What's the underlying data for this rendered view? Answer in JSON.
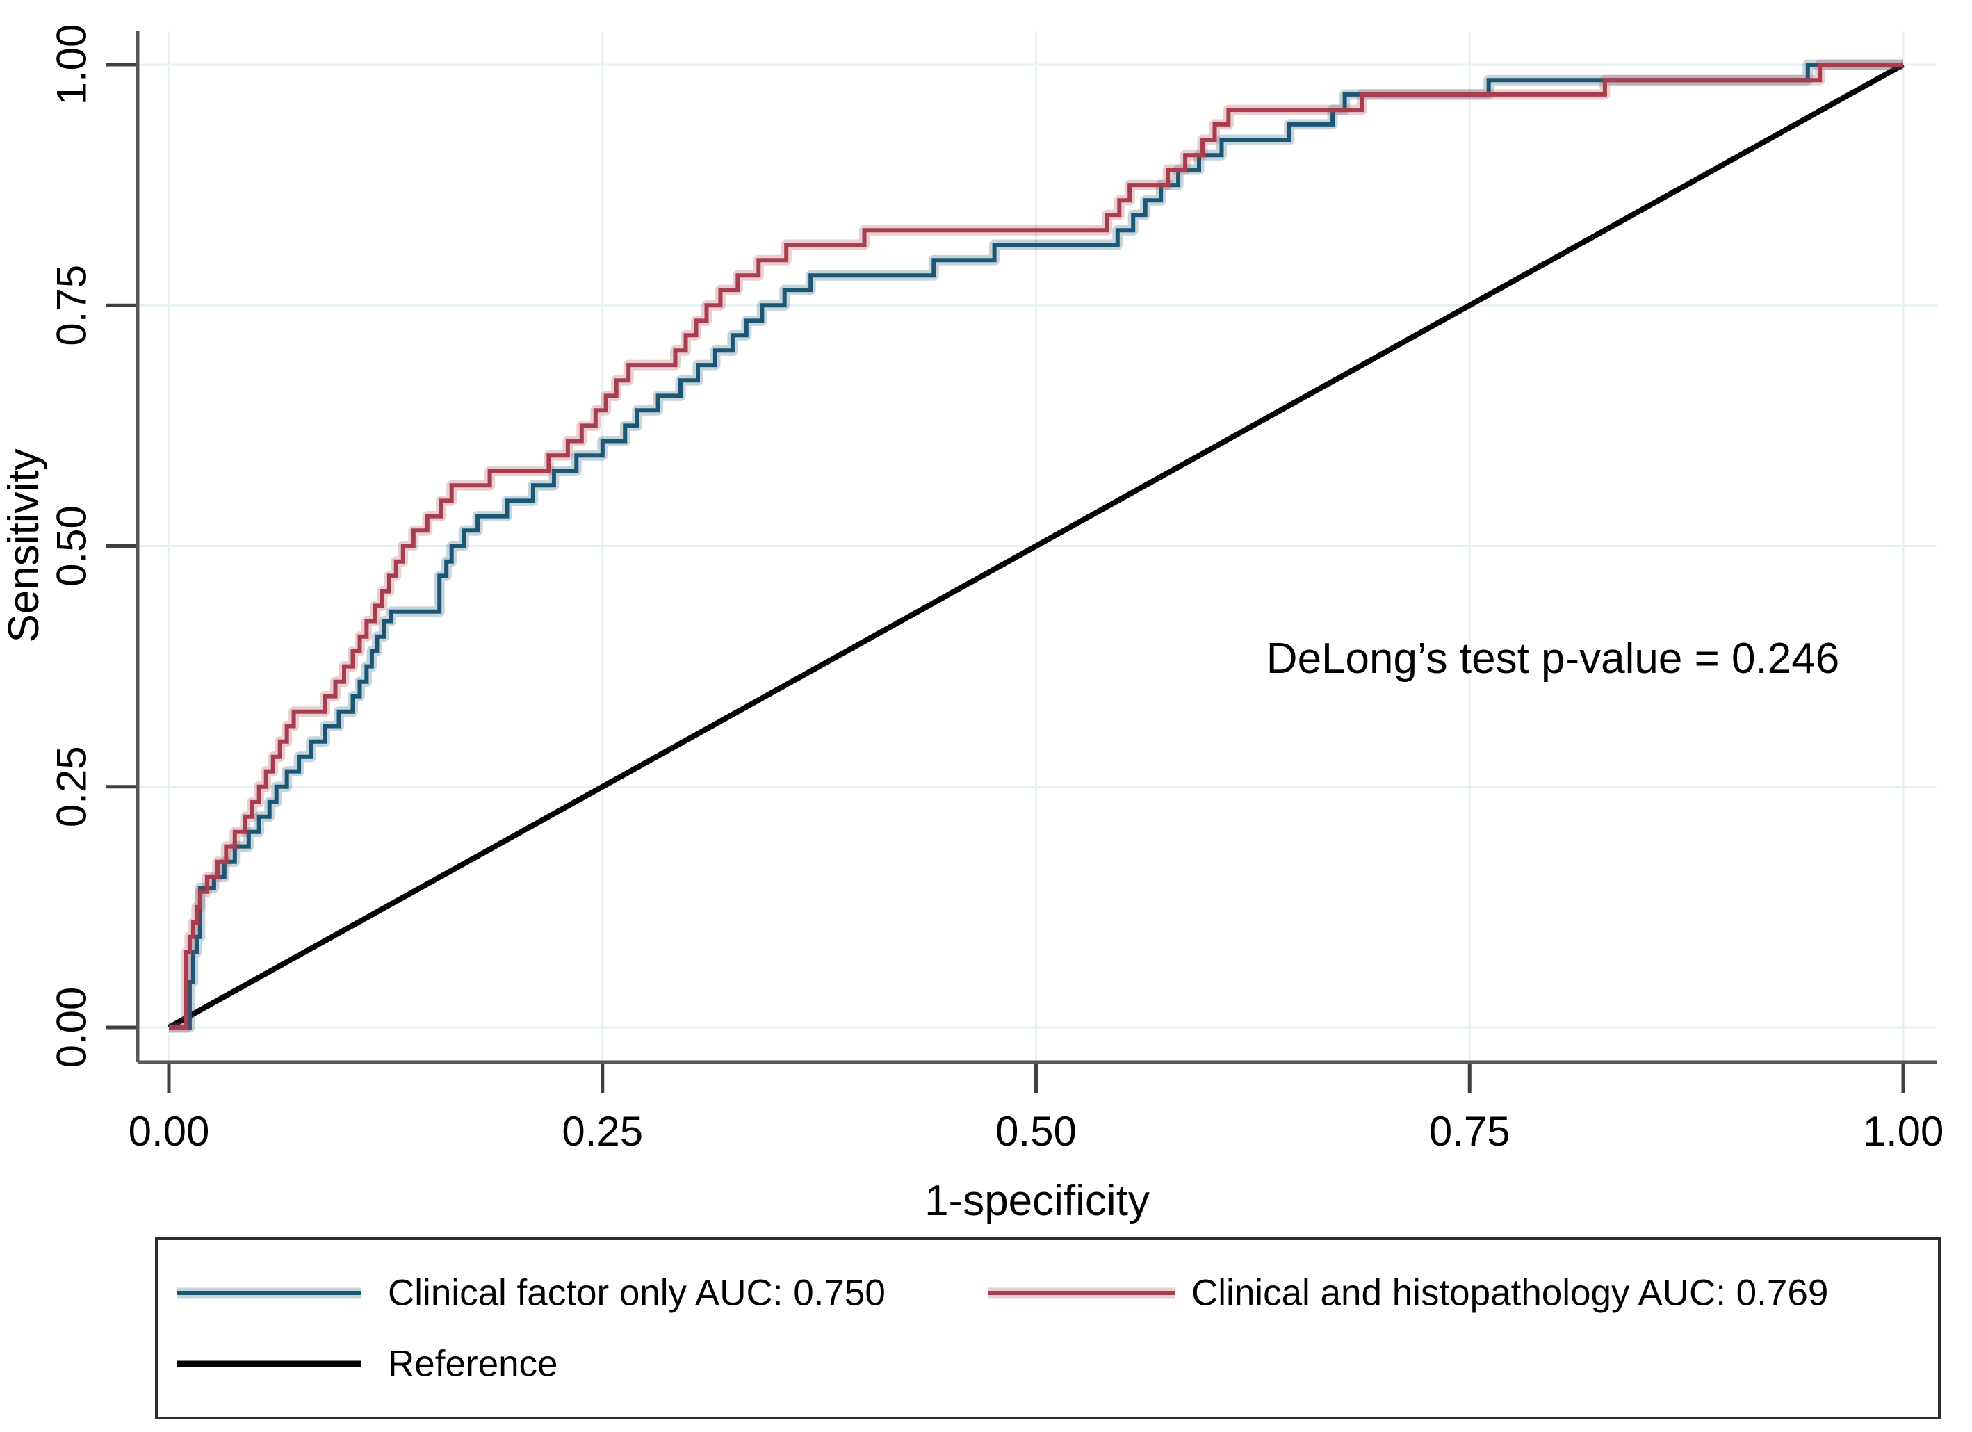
{
  "figure": {
    "type_note": "ROC curve comparison figure",
    "annotation": "DeLong’s test p-value = 0.246",
    "x_axis": {
      "title": "1-specificity",
      "tick_labels": [
        "0.00",
        "0.25",
        "0.50",
        "0.75",
        "1.00"
      ],
      "tick_values": [
        0,
        0.25,
        0.5,
        0.75,
        1
      ]
    },
    "y_axis": {
      "title": "Sensitivity",
      "tick_labels": [
        "0.00",
        "0.25",
        "0.50",
        "0.75",
        "1.00"
      ],
      "tick_values": [
        0,
        0.25,
        0.5,
        0.75,
        1
      ]
    },
    "legend": {
      "items": [
        {
          "label": "Clinical factor only AUC: 0.750",
          "color": "#1b5675"
        },
        {
          "label": "Clinical and histopathology AUC: 0.769",
          "color": "#a83e4d"
        },
        {
          "label": "Reference",
          "color": "#000000"
        }
      ]
    },
    "colors": {
      "curve_clinical": "#1b5675",
      "curve_clinical_histopathology": "#a83e4d",
      "reference": "#000000",
      "gridline": "#e7f0f2",
      "axis_line": "#575757",
      "tick": "#3f3f3f",
      "legend_border": "#2e2e2e",
      "text": "#000000"
    }
  },
  "chart_data": {
    "type": "line",
    "subtype": "roc-step-curves",
    "title": "",
    "xlabel": "1-specificity",
    "ylabel": "Sensitivity",
    "xlim": [
      0,
      1
    ],
    "ylim": [
      0,
      1
    ],
    "grid": true,
    "legend_position": "bottom",
    "annotation": "DeLong’s test p-value = 0.246",
    "delong_p_value": 0.246,
    "x_tick_labels": [
      "0.00",
      "0.25",
      "0.50",
      "0.75",
      "1.00"
    ],
    "y_tick_labels": [
      "0.00",
      "0.25",
      "0.50",
      "0.75",
      "1.00"
    ],
    "x_tick_values": [
      0,
      0.25,
      0.5,
      0.75,
      1
    ],
    "y_tick_values": [
      0,
      0.25,
      0.5,
      0.75,
      1
    ],
    "series": [
      {
        "name": "Clinical factor only AUC: 0.750",
        "auc": 0.75,
        "color": "#1b5675",
        "style": "step",
        "points": [
          [
            0.0,
            0.0
          ],
          [
            0.012,
            0.047
          ],
          [
            0.014,
            0.078
          ],
          [
            0.016,
            0.094
          ],
          [
            0.018,
            0.145
          ],
          [
            0.026,
            0.156
          ],
          [
            0.032,
            0.172
          ],
          [
            0.038,
            0.188
          ],
          [
            0.046,
            0.203
          ],
          [
            0.052,
            0.219
          ],
          [
            0.058,
            0.234
          ],
          [
            0.062,
            0.25
          ],
          [
            0.068,
            0.266
          ],
          [
            0.075,
            0.281
          ],
          [
            0.082,
            0.297
          ],
          [
            0.09,
            0.313
          ],
          [
            0.098,
            0.328
          ],
          [
            0.106,
            0.344
          ],
          [
            0.11,
            0.359
          ],
          [
            0.114,
            0.375
          ],
          [
            0.117,
            0.391
          ],
          [
            0.12,
            0.406
          ],
          [
            0.124,
            0.422
          ],
          [
            0.128,
            0.432
          ],
          [
            0.156,
            0.469
          ],
          [
            0.16,
            0.484
          ],
          [
            0.163,
            0.5
          ],
          [
            0.17,
            0.516
          ],
          [
            0.178,
            0.531
          ],
          [
            0.195,
            0.547
          ],
          [
            0.21,
            0.563
          ],
          [
            0.222,
            0.578
          ],
          [
            0.235,
            0.594
          ],
          [
            0.25,
            0.609
          ],
          [
            0.263,
            0.625
          ],
          [
            0.27,
            0.641
          ],
          [
            0.282,
            0.656
          ],
          [
            0.295,
            0.672
          ],
          [
            0.305,
            0.688
          ],
          [
            0.315,
            0.703
          ],
          [
            0.325,
            0.719
          ],
          [
            0.333,
            0.734
          ],
          [
            0.342,
            0.75
          ],
          [
            0.355,
            0.766
          ],
          [
            0.37,
            0.781
          ],
          [
            0.441,
            0.797
          ],
          [
            0.476,
            0.813
          ],
          [
            0.547,
            0.828
          ],
          [
            0.556,
            0.844
          ],
          [
            0.563,
            0.859
          ],
          [
            0.572,
            0.875
          ],
          [
            0.582,
            0.891
          ],
          [
            0.594,
            0.906
          ],
          [
            0.607,
            0.922
          ],
          [
            0.646,
            0.938
          ],
          [
            0.671,
            0.953
          ],
          [
            0.678,
            0.969
          ],
          [
            0.761,
            0.984
          ],
          [
            0.945,
            1.0
          ],
          [
            1.0,
            1.0
          ]
        ]
      },
      {
        "name": "Clinical and histopathology AUC: 0.769",
        "auc": 0.769,
        "color": "#a83e4d",
        "style": "step",
        "points": [
          [
            0.0,
            0.0
          ],
          [
            0.01,
            0.078
          ],
          [
            0.012,
            0.094
          ],
          [
            0.014,
            0.109
          ],
          [
            0.016,
            0.125
          ],
          [
            0.018,
            0.141
          ],
          [
            0.022,
            0.156
          ],
          [
            0.028,
            0.172
          ],
          [
            0.033,
            0.188
          ],
          [
            0.038,
            0.203
          ],
          [
            0.044,
            0.219
          ],
          [
            0.048,
            0.234
          ],
          [
            0.052,
            0.25
          ],
          [
            0.056,
            0.266
          ],
          [
            0.06,
            0.281
          ],
          [
            0.064,
            0.297
          ],
          [
            0.068,
            0.313
          ],
          [
            0.072,
            0.328
          ],
          [
            0.09,
            0.344
          ],
          [
            0.096,
            0.359
          ],
          [
            0.101,
            0.375
          ],
          [
            0.106,
            0.391
          ],
          [
            0.11,
            0.406
          ],
          [
            0.114,
            0.422
          ],
          [
            0.119,
            0.438
          ],
          [
            0.123,
            0.453
          ],
          [
            0.127,
            0.469
          ],
          [
            0.131,
            0.484
          ],
          [
            0.135,
            0.5
          ],
          [
            0.141,
            0.516
          ],
          [
            0.149,
            0.531
          ],
          [
            0.157,
            0.547
          ],
          [
            0.163,
            0.563
          ],
          [
            0.185,
            0.578
          ],
          [
            0.219,
            0.594
          ],
          [
            0.23,
            0.609
          ],
          [
            0.238,
            0.625
          ],
          [
            0.246,
            0.641
          ],
          [
            0.252,
            0.656
          ],
          [
            0.258,
            0.672
          ],
          [
            0.265,
            0.688
          ],
          [
            0.292,
            0.703
          ],
          [
            0.298,
            0.719
          ],
          [
            0.304,
            0.734
          ],
          [
            0.31,
            0.75
          ],
          [
            0.318,
            0.766
          ],
          [
            0.328,
            0.781
          ],
          [
            0.34,
            0.797
          ],
          [
            0.356,
            0.813
          ],
          [
            0.401,
            0.828
          ],
          [
            0.541,
            0.844
          ],
          [
            0.548,
            0.859
          ],
          [
            0.554,
            0.875
          ],
          [
            0.576,
            0.891
          ],
          [
            0.586,
            0.906
          ],
          [
            0.596,
            0.922
          ],
          [
            0.603,
            0.938
          ],
          [
            0.611,
            0.953
          ],
          [
            0.688,
            0.969
          ],
          [
            0.828,
            0.984
          ],
          [
            0.952,
            1.0
          ],
          [
            1.0,
            1.0
          ]
        ]
      },
      {
        "name": "Reference",
        "color": "#000000",
        "style": "straight",
        "points": [
          [
            0,
            0
          ],
          [
            1,
            1
          ]
        ]
      }
    ]
  }
}
